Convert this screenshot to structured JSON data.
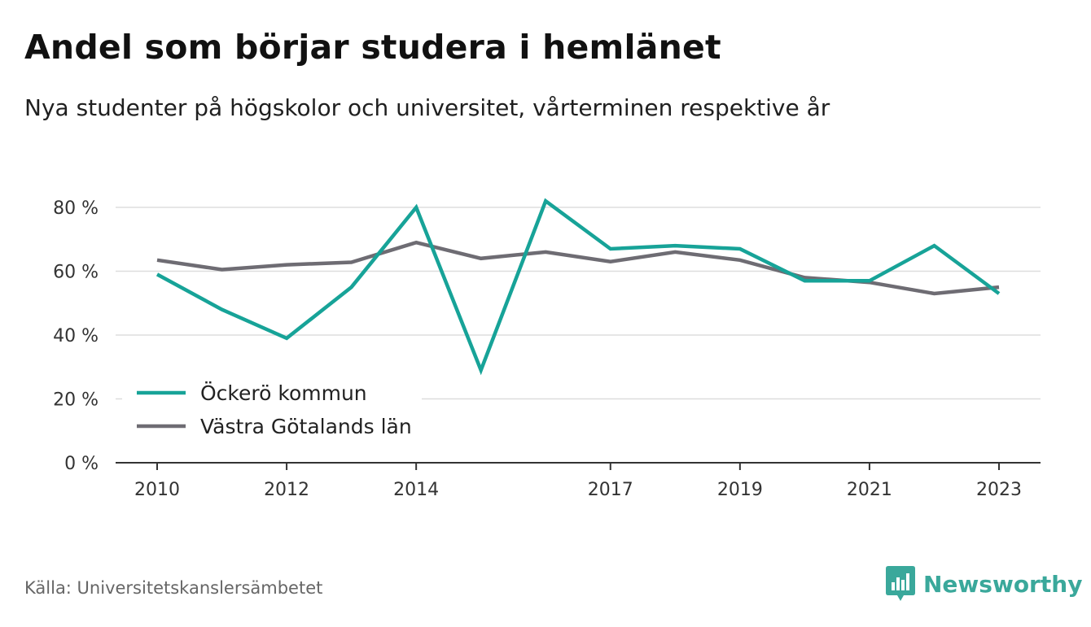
{
  "header": {
    "title": "Andel som börjar studera i hemlänet",
    "subtitle": "Nya studenter på högskolor och universitet, vårterminen respektive år"
  },
  "footer": {
    "source": "Källa: Universitetskanslersämbetet",
    "brand": "Newsworthy",
    "brand_icon": "bar-chart-icon",
    "brand_color": "#3aa89b"
  },
  "chart_data": {
    "type": "line",
    "title": "Andel som börjar studera i hemlänet",
    "subtitle": "Nya studenter på högskolor och universitet, vårterminen respektive år",
    "x": [
      2010,
      2011,
      2012,
      2013,
      2014,
      2015,
      2016,
      2017,
      2018,
      2019,
      2020,
      2021,
      2022,
      2023
    ],
    "x_tick_values": [
      2010,
      2012,
      2014,
      2017,
      2019,
      2021,
      2023
    ],
    "x_tick_labels": [
      "2010",
      "2012",
      "2014",
      "2017",
      "2019",
      "2021",
      "2023"
    ],
    "y_ticks": [
      0,
      20,
      40,
      60,
      80
    ],
    "y_tick_labels": [
      "0 %",
      "20 %",
      "40 %",
      "60 %",
      "80 %"
    ],
    "ylim": [
      0,
      80
    ],
    "grid": true,
    "legend_position": "bottom-left",
    "series": [
      {
        "name": "Öckerö kommun",
        "color": "#17a398",
        "values": [
          59,
          48,
          39,
          55,
          80,
          29,
          82,
          67,
          68,
          67,
          57,
          57,
          68,
          53
        ]
      },
      {
        "name": "Västra Götalands län",
        "color": "#6e6c73",
        "values": [
          63.5,
          60.5,
          62,
          62.8,
          69,
          64,
          66,
          63,
          66,
          63.5,
          58,
          56.5,
          53,
          55
        ]
      }
    ]
  }
}
